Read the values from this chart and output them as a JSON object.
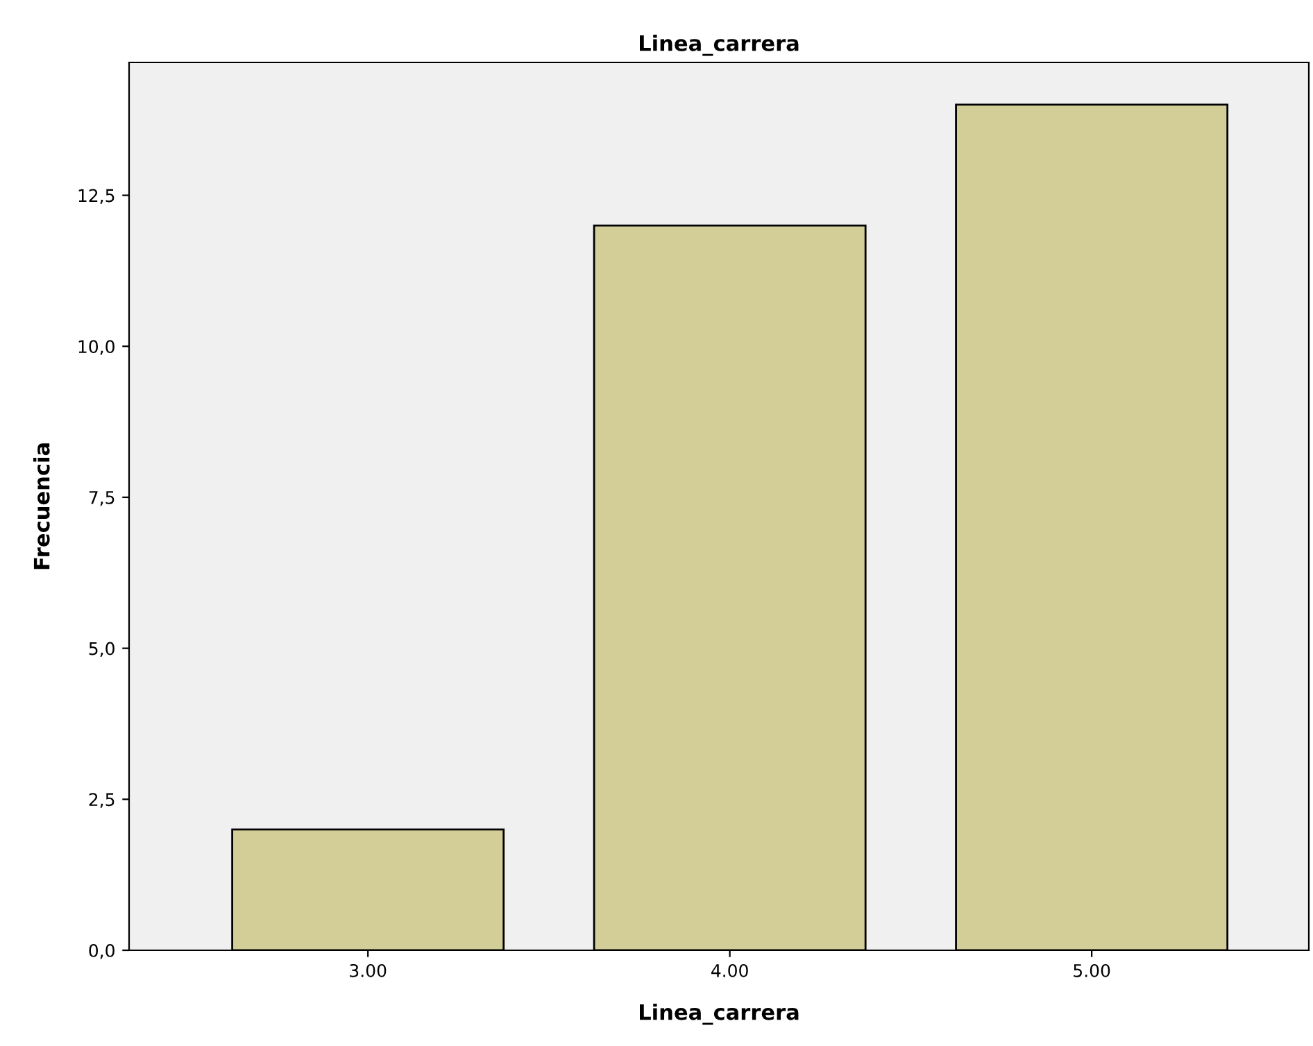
{
  "chart_data": {
    "type": "bar",
    "title": "Linea_carrera",
    "xlabel": "Linea_carrera",
    "ylabel": "Frecuencia",
    "categories": [
      "3.00",
      "4.00",
      "5.00"
    ],
    "values": [
      2,
      12,
      14
    ],
    "color": "#d3ce97",
    "ylim": [
      0,
      14.7
    ],
    "yticks": [
      {
        "value": 0,
        "label": "0,0"
      },
      {
        "value": 2.5,
        "label": "2,5"
      },
      {
        "value": 5,
        "label": "5,0"
      },
      {
        "value": 7.5,
        "label": "7,5"
      },
      {
        "value": 10,
        "label": "10,0"
      },
      {
        "value": 12.5,
        "label": "12,5"
      }
    ],
    "grid": false,
    "legend": false
  }
}
